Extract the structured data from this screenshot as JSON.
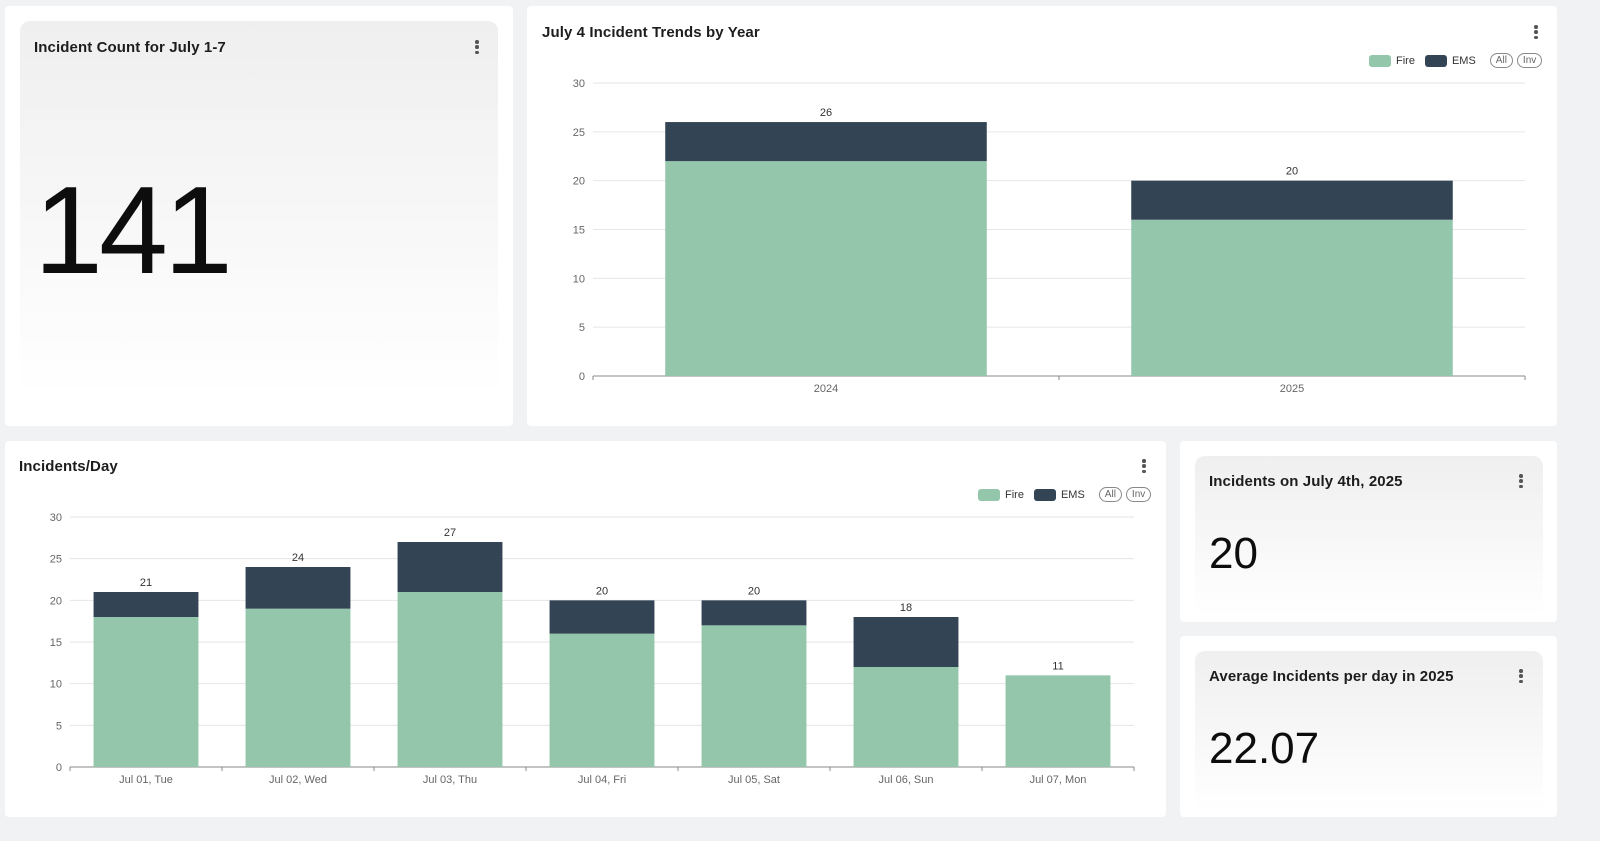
{
  "colors": {
    "fire": "#93c6aa",
    "ems": "#334555",
    "grid": "#e6e6e6",
    "axis": "#666666"
  },
  "kpi_week": {
    "title": "Incident Count for July 1-7",
    "value": "141"
  },
  "kpi_july4": {
    "title": "Incidents on July 4th, 2025",
    "value": "20"
  },
  "kpi_avg": {
    "title": "Average Incidents per day in 2025",
    "value": "22.07"
  },
  "legend": {
    "fire": "Fire",
    "ems": "EMS",
    "all": "All",
    "inv": "Inv"
  },
  "chart_data": [
    {
      "type": "bar",
      "stacked": true,
      "title": "July 4 Incident Trends by Year",
      "categories": [
        "2024",
        "2025"
      ],
      "series": [
        {
          "name": "Fire",
          "values": [
            22,
            16
          ]
        },
        {
          "name": "EMS",
          "values": [
            4,
            4
          ]
        }
      ],
      "totals": [
        26,
        20
      ],
      "ylim": [
        0,
        30
      ],
      "yticks": [
        0,
        5,
        10,
        15,
        20,
        25,
        30
      ],
      "grid": true,
      "legend": "top-right"
    },
    {
      "type": "bar",
      "stacked": true,
      "title": "Incidents/Day",
      "categories": [
        "Jul 01, Tue",
        "Jul 02, Wed",
        "Jul 03, Thu",
        "Jul 04, Fri",
        "Jul 05, Sat",
        "Jul 06, Sun",
        "Jul 07, Mon"
      ],
      "series": [
        {
          "name": "Fire",
          "values": [
            18,
            19,
            21,
            16,
            17,
            12,
            11
          ]
        },
        {
          "name": "EMS",
          "values": [
            3,
            5,
            6,
            4,
            3,
            6,
            0
          ]
        }
      ],
      "totals": [
        21,
        24,
        27,
        20,
        20,
        18,
        11
      ],
      "ylim": [
        0,
        30
      ],
      "yticks": [
        0,
        5,
        10,
        15,
        20,
        25,
        30
      ],
      "grid": true,
      "legend": "top-right"
    }
  ]
}
